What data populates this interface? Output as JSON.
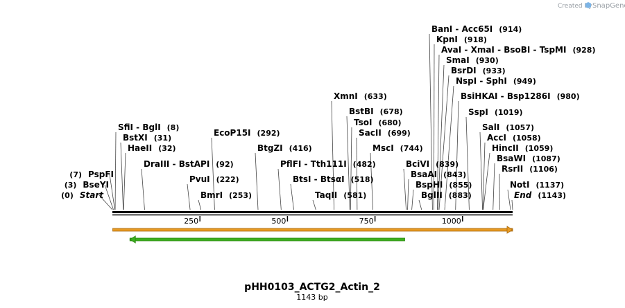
{
  "credit": {
    "created_by": "Created by",
    "brand": "SnapGene",
    "logo_icon": "snapgene-logo-icon"
  },
  "title": "pHH0103_ACTG2_Actin_2",
  "subtitle": "1143 bp",
  "sequence_length": 1143,
  "ticks": [
    "250",
    "500",
    "750",
    "1000"
  ],
  "tick_values": [
    250,
    500,
    750,
    1000
  ],
  "features": [
    {
      "name": "orange-feature-arrow",
      "start": 1,
      "end": 1143,
      "direction": "forward",
      "color": "#e89a22"
    },
    {
      "name": "green-feature-arrow",
      "start": 50,
      "end": 835,
      "direction": "reverse",
      "color": "#3cae1e"
    }
  ],
  "labels": [
    {
      "text": "Start",
      "pos": "(0)",
      "bp": 0,
      "italic": true,
      "side": "left"
    },
    {
      "text": "BseYI",
      "pos": "(3)",
      "bp": 3,
      "side": "left"
    },
    {
      "text": "PspFI",
      "pos": "(7)",
      "bp": 7,
      "side": "left"
    },
    {
      "text": "SfiI  - BglI",
      "pos": "(8)",
      "bp": 8
    },
    {
      "text": "BstXI",
      "pos": "(31)",
      "bp": 31
    },
    {
      "text": "HaeII",
      "pos": "(32)",
      "bp": 32
    },
    {
      "text": "DraIII  - BstAPI",
      "pos": "(92)",
      "bp": 92
    },
    {
      "text": "PvuI",
      "pos": "(222)",
      "bp": 222
    },
    {
      "text": "BmrI",
      "pos": "(253)",
      "bp": 253
    },
    {
      "text": "EcoP15I",
      "pos": "(292)",
      "bp": 292
    },
    {
      "text": "BtgZI",
      "pos": "(416)",
      "bp": 416
    },
    {
      "text": "PflFI  - Tth111I",
      "pos": "(482)",
      "bp": 482
    },
    {
      "text": "BtsI  - BtsαI",
      "pos": "(518)",
      "bp": 518
    },
    {
      "text": "TaqII",
      "pos": "(581)",
      "bp": 581
    },
    {
      "text": "XmnI",
      "pos": "(633)",
      "bp": 633
    },
    {
      "text": "BstBI",
      "pos": "(678)",
      "bp": 678
    },
    {
      "text": "TsoI",
      "pos": "(680)",
      "bp": 680
    },
    {
      "text": "SacII",
      "pos": "(699)",
      "bp": 699
    },
    {
      "text": "MscI",
      "pos": "(744)",
      "bp": 744
    },
    {
      "text": "BciVI",
      "pos": "(839)",
      "bp": 839
    },
    {
      "text": "BsaAI",
      "pos": "(843)",
      "bp": 843
    },
    {
      "text": "BspHI",
      "pos": "(855)",
      "bp": 855
    },
    {
      "text": "BglII",
      "pos": "(883)",
      "bp": 883
    },
    {
      "text": "BanI  - Acc65I",
      "pos": "(914)",
      "bp": 914
    },
    {
      "text": "KpnI",
      "pos": "(918)",
      "bp": 918
    },
    {
      "text": "AvaI  - XmaI  - BsoBI  - TspMI",
      "pos": "(928)",
      "bp": 928
    },
    {
      "text": "SmaI",
      "pos": "(930)",
      "bp": 930
    },
    {
      "text": "BsrDI",
      "pos": "(933)",
      "bp": 933
    },
    {
      "text": "NspI  - SphI",
      "pos": "(949)",
      "bp": 949
    },
    {
      "text": "BsiHKAI  - Bsp1286I",
      "pos": "(980)",
      "bp": 980
    },
    {
      "text": "SspI",
      "pos": "(1019)",
      "bp": 1019
    },
    {
      "text": "SalI",
      "pos": "(1057)",
      "bp": 1057
    },
    {
      "text": "AccI",
      "pos": "(1058)",
      "bp": 1058
    },
    {
      "text": "HincII",
      "pos": "(1059)",
      "bp": 1059
    },
    {
      "text": "BsaWI",
      "pos": "(1087)",
      "bp": 1087
    },
    {
      "text": "RsrII",
      "pos": "(1106)",
      "bp": 1106
    },
    {
      "text": "NotI",
      "pos": "(1137)",
      "bp": 1137
    },
    {
      "text": "End",
      "pos": "(1143)",
      "bp": 1143,
      "italic": true
    }
  ]
}
